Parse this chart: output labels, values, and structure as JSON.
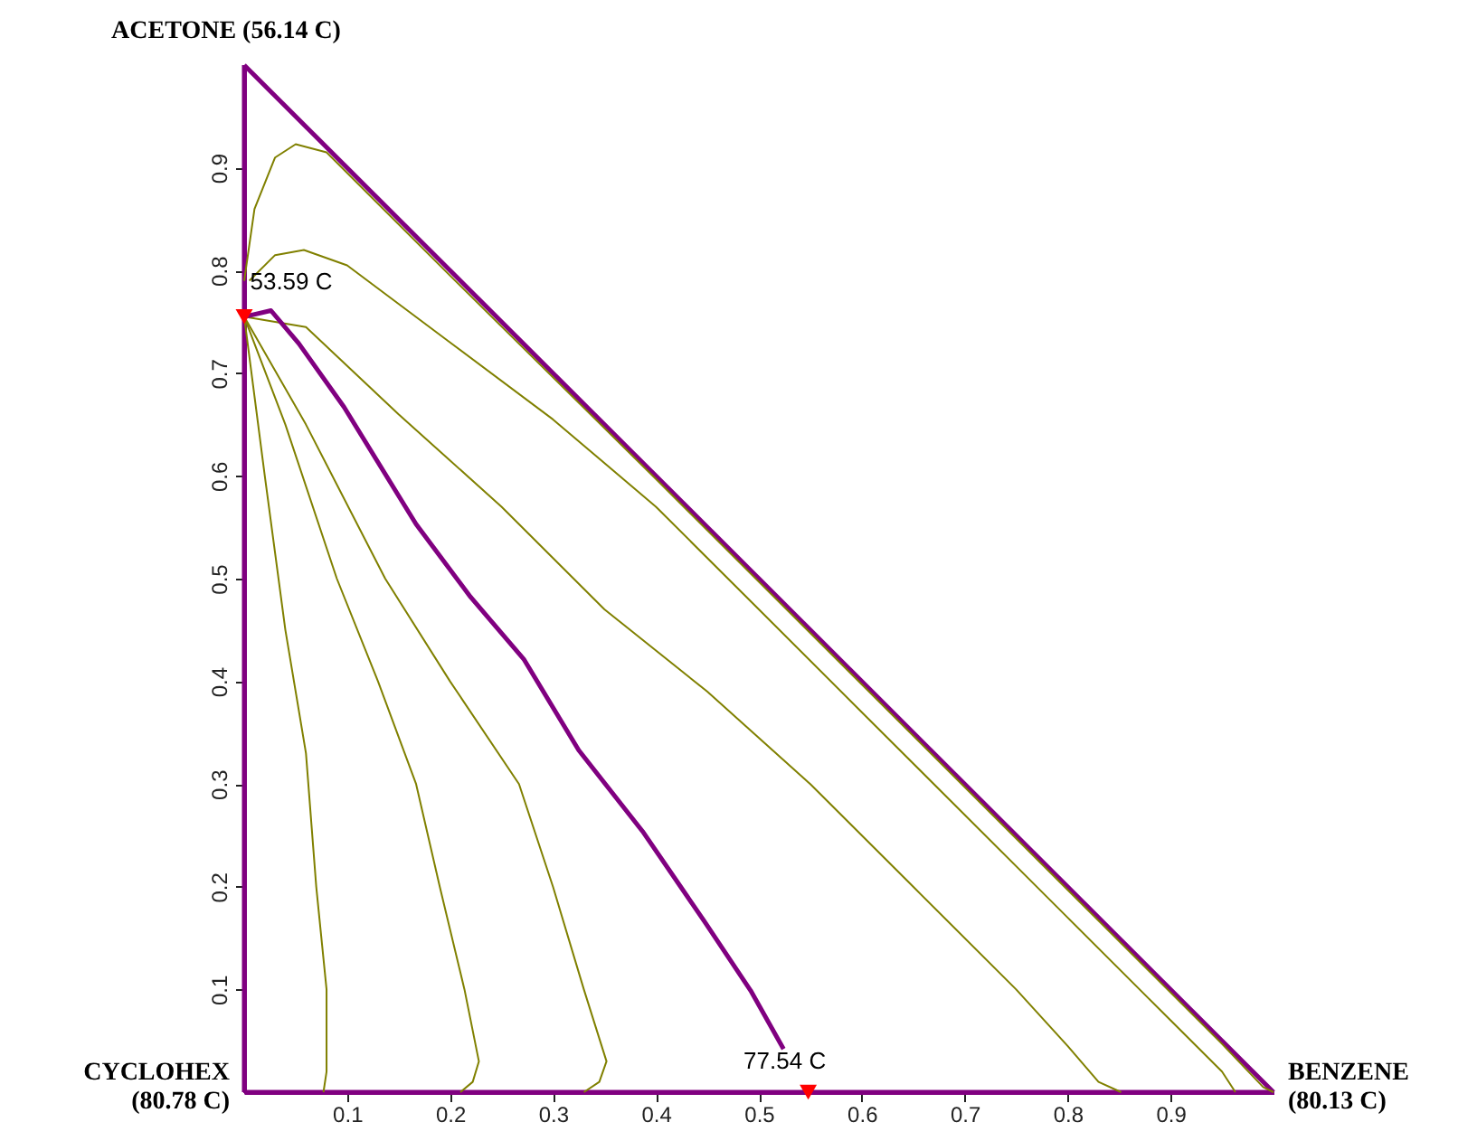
{
  "chart_data": {
    "type": "line",
    "xlim": [
      0,
      1
    ],
    "ylim": [
      0,
      1
    ],
    "xticks": [
      0.1,
      0.2,
      0.3,
      0.4,
      0.5,
      0.6,
      0.7,
      0.8,
      0.9
    ],
    "yticks": [
      0.1,
      0.2,
      0.3,
      0.4,
      0.5,
      0.6,
      0.7,
      0.8,
      0.9
    ],
    "grid": false,
    "series": [
      {
        "color": "#800080",
        "x": [
          0,
          0
        ],
        "values": [
          0,
          1
        ]
      },
      {
        "color": "#800080",
        "x": [
          0,
          1
        ],
        "values": [
          0,
          0
        ]
      },
      {
        "color": "#800080",
        "x": [
          0,
          1
        ],
        "values": [
          1,
          0
        ]
      },
      {
        "color": "#808000",
        "x": [
          0,
          0.01,
          0.03,
          0.05,
          0.08,
          0.12,
          0.2,
          0.4,
          0.6,
          0.8,
          0.95,
          0.99,
          1
        ],
        "values": [
          0.79,
          0.86,
          0.91,
          0.923,
          0.915,
          0.875,
          0.795,
          0.597,
          0.397,
          0.197,
          0.047,
          0.005,
          0
        ]
      },
      {
        "color": "#808000",
        "x": [
          0.005,
          0.03,
          0.058,
          0.1,
          0.2,
          0.3,
          0.4,
          0.5,
          0.6,
          0.7,
          0.8,
          0.9,
          0.95,
          0.963
        ],
        "values": [
          0.79,
          0.815,
          0.82,
          0.805,
          0.73,
          0.655,
          0.57,
          0.47,
          0.37,
          0.27,
          0.17,
          0.07,
          0.02,
          0
        ]
      },
      {
        "color": "#808000",
        "x": [
          0,
          0.06,
          0.15,
          0.25,
          0.35,
          0.45,
          0.55,
          0.65,
          0.75,
          0.8,
          0.83,
          0.852
        ],
        "values": [
          0.755,
          0.745,
          0.66,
          0.57,
          0.47,
          0.39,
          0.3,
          0.2,
          0.1,
          0.045,
          0.01,
          0
        ]
      },
      {
        "color": "#808000",
        "x": [
          0,
          0.02,
          0.04,
          0.06,
          0.07,
          0.08,
          0.08,
          0.077
        ],
        "values": [
          0.755,
          0.6,
          0.45,
          0.33,
          0.2,
          0.1,
          0.02,
          0
        ]
      },
      {
        "color": "#808000",
        "x": [
          0,
          0.04,
          0.09,
          0.13,
          0.167,
          0.19,
          0.214,
          0.228,
          0.222,
          0.21
        ],
        "values": [
          0.755,
          0.65,
          0.5,
          0.4,
          0.3,
          0.2,
          0.1,
          0.03,
          0.01,
          0
        ]
      },
      {
        "color": "#808000",
        "x": [
          0,
          0.06,
          0.137,
          0.2,
          0.267,
          0.3,
          0.33,
          0.352,
          0.345,
          0.33
        ],
        "values": [
          0.755,
          0.65,
          0.5,
          0.4,
          0.3,
          0.2,
          0.1,
          0.03,
          0.01,
          0
        ]
      },
      {
        "color": "#800080",
        "x": [
          0,
          0.026,
          0.053,
          0.097,
          0.167,
          0.22,
          0.272,
          0.325,
          0.387,
          0.448,
          0.492,
          0.524
        ],
        "values": [
          0.755,
          0.761,
          0.729,
          0.667,
          0.553,
          0.482,
          0.421,
          0.333,
          0.254,
          0.165,
          0.099,
          0.042
        ]
      },
      {
        "type": "scatter",
        "marker": "triangle",
        "color": "#ff0000",
        "x": [
          0,
          0.548
        ],
        "values": [
          0.755,
          0
        ]
      }
    ],
    "annotations": [
      {
        "text": "ACETONE (56.14 C)",
        "x": 0,
        "y": 1
      },
      {
        "text": "CYCLOHEX\n(80.78 C)",
        "x": 0,
        "y": 0
      },
      {
        "text": "BENZENE\n(80.13 C)",
        "x": 1,
        "y": 0
      },
      {
        "text": "53.59 C",
        "x": 0,
        "y": 0.755
      },
      {
        "text": "77.54 C",
        "x": 0.548,
        "y": 0
      }
    ]
  }
}
